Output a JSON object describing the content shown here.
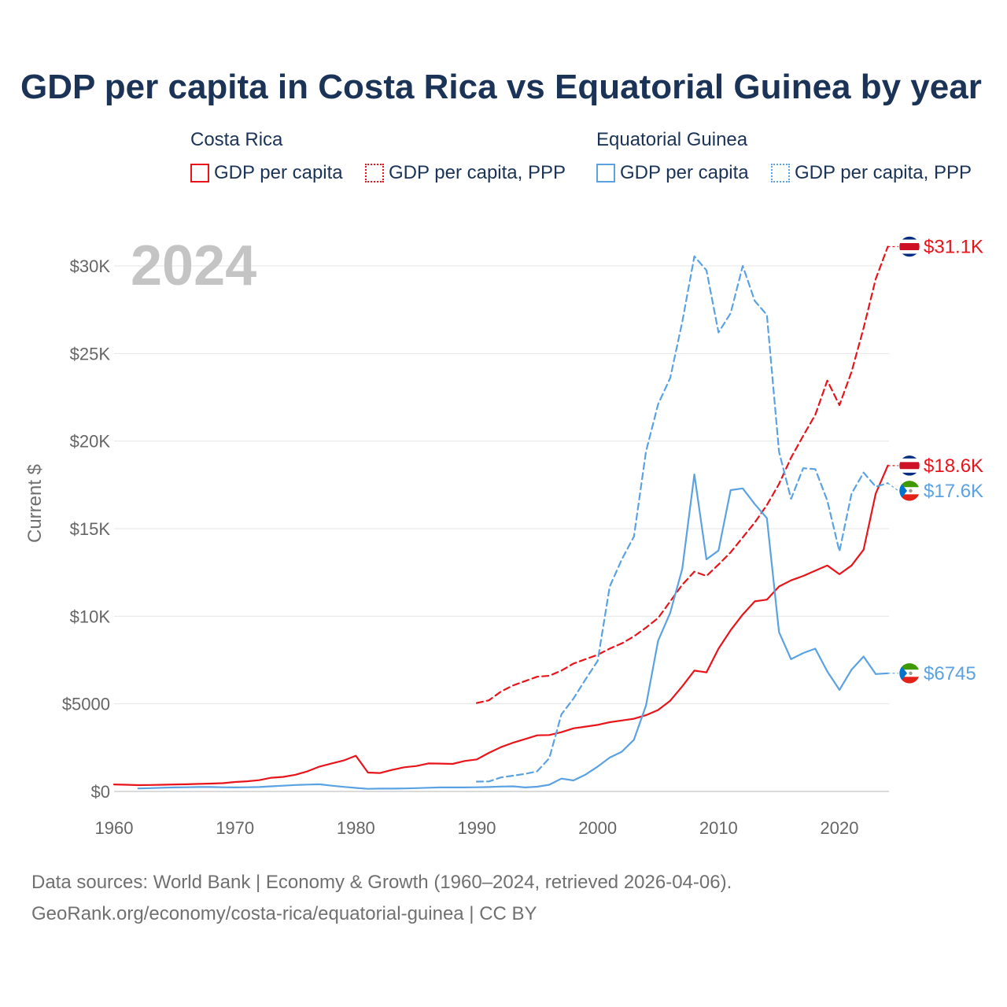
{
  "title": "GDP per capita in Costa Rica vs Equatorial Guinea by year",
  "legend": {
    "groups": [
      {
        "name": "Costa Rica",
        "color": "#e8141b",
        "items": [
          {
            "label": "GDP per capita",
            "style": "solid"
          },
          {
            "label": "GDP per capita, PPP",
            "style": "dotted"
          }
        ]
      },
      {
        "name": "Equatorial Guinea",
        "color": "#5aa2e2",
        "items": [
          {
            "label": "GDP per capita",
            "style": "solid"
          },
          {
            "label": "GDP per capita, PPP",
            "style": "dotted"
          }
        ]
      }
    ]
  },
  "year_label": "2024",
  "footer": {
    "line1": "Data sources: World Bank | Economy & Growth (1960–2024, retrieved 2026-04-06).",
    "line2": "GeoRank.org/economy/costa-rica/equatorial-guinea | CC BY"
  },
  "chart_data": {
    "type": "line",
    "title": "GDP per capita in Costa Rica vs Equatorial Guinea by year",
    "xlabel": "",
    "ylabel": "Current $",
    "xlim": [
      1960,
      2024
    ],
    "ylim": [
      0,
      32000
    ],
    "xticks": [
      1960,
      1970,
      1980,
      1990,
      2000,
      2010,
      2020
    ],
    "yticks": [
      0,
      5000,
      10000,
      15000,
      20000,
      25000,
      30000
    ],
    "ytick_labels": [
      "$0",
      "$5000",
      "$10K",
      "$15K",
      "$20K",
      "$25K",
      "$30K"
    ],
    "grid": true,
    "series": [
      {
        "name": "Costa Rica GDP per capita",
        "country": "Costa Rica",
        "color": "#e8141b",
        "dash": "solid",
        "end_label": "$18.6K",
        "flag": "costa-rica",
        "x": [
          1960,
          1961,
          1962,
          1963,
          1964,
          1965,
          1966,
          1967,
          1968,
          1969,
          1970,
          1971,
          1972,
          1973,
          1974,
          1975,
          1976,
          1977,
          1978,
          1979,
          1980,
          1981,
          1982,
          1983,
          1984,
          1985,
          1986,
          1987,
          1988,
          1989,
          1990,
          1991,
          1992,
          1993,
          1994,
          1995,
          1996,
          1997,
          1998,
          1999,
          2000,
          2001,
          2002,
          2003,
          2004,
          2005,
          2006,
          2007,
          2008,
          2009,
          2010,
          2011,
          2012,
          2013,
          2014,
          2015,
          2016,
          2017,
          2018,
          2019,
          2020,
          2021,
          2022,
          2023,
          2024
        ],
        "y": [
          400,
          380,
          360,
          370,
          380,
          400,
          410,
          430,
          450,
          470,
          540,
          580,
          640,
          780,
          830,
          950,
          1150,
          1420,
          1600,
          1770,
          2040,
          1080,
          1050,
          1230,
          1380,
          1450,
          1600,
          1590,
          1570,
          1740,
          1830,
          2200,
          2530,
          2780,
          2990,
          3200,
          3220,
          3380,
          3600,
          3700,
          3800,
          3950,
          4050,
          4150,
          4350,
          4650,
          5180,
          6000,
          6900,
          6800,
          8150,
          9200,
          10100,
          10850,
          10950,
          11700,
          12050,
          12300,
          12600,
          12900,
          12400,
          12900,
          13800,
          17000,
          18600
        ]
      },
      {
        "name": "Costa Rica GDP per capita, PPP",
        "country": "Costa Rica",
        "color": "#e8141b",
        "dash": "dashed",
        "end_label": "$31.1K",
        "flag": "costa-rica",
        "x": [
          1990,
          1991,
          1992,
          1993,
          1994,
          1995,
          1996,
          1997,
          1998,
          1999,
          2000,
          2001,
          2002,
          2003,
          2004,
          2005,
          2006,
          2007,
          2008,
          2009,
          2010,
          2011,
          2012,
          2013,
          2014,
          2015,
          2016,
          2017,
          2018,
          2019,
          2020,
          2021,
          2022,
          2023,
          2024
        ],
        "y": [
          5050,
          5200,
          5700,
          6050,
          6300,
          6550,
          6600,
          6900,
          7300,
          7550,
          7800,
          8150,
          8450,
          8850,
          9350,
          9900,
          10850,
          11800,
          12550,
          12300,
          12950,
          13650,
          14500,
          15350,
          16350,
          17550,
          19050,
          20300,
          21500,
          23450,
          22050,
          23950,
          26450,
          29250,
          31100
        ]
      },
      {
        "name": "Equatorial Guinea GDP per capita",
        "country": "Equatorial Guinea",
        "color": "#5aa2e2",
        "dash": "solid",
        "end_label": "$6745",
        "flag": "equatorial-guinea",
        "x": [
          1962,
          1963,
          1964,
          1965,
          1966,
          1967,
          1968,
          1969,
          1970,
          1971,
          1972,
          1973,
          1974,
          1975,
          1976,
          1977,
          1978,
          1979,
          1980,
          1981,
          1982,
          1983,
          1984,
          1985,
          1986,
          1987,
          1988,
          1989,
          1990,
          1991,
          1992,
          1993,
          1994,
          1995,
          1996,
          1997,
          1998,
          1999,
          2000,
          2001,
          2002,
          2003,
          2004,
          2005,
          2006,
          2007,
          2008,
          2009,
          2010,
          2011,
          2012,
          2013,
          2014,
          2015,
          2016,
          2017,
          2018,
          2019,
          2020,
          2021,
          2022,
          2023,
          2024
        ],
        "y": [
          170,
          190,
          210,
          230,
          240,
          250,
          250,
          240,
          230,
          240,
          250,
          290,
          330,
          370,
          390,
          410,
          330,
          260,
          200,
          150,
          160,
          160,
          170,
          190,
          210,
          230,
          230,
          230,
          240,
          250,
          280,
          290,
          230,
          270,
          380,
          730,
          630,
          960,
          1420,
          1930,
          2270,
          2950,
          4900,
          8600,
          10200,
          12700,
          18100,
          13250,
          13750,
          17200,
          17300,
          16400,
          15600,
          9100,
          7550,
          7900,
          8150,
          6850,
          5800,
          6950,
          7700,
          6700,
          6745
        ]
      },
      {
        "name": "Equatorial Guinea GDP per capita, PPP",
        "country": "Equatorial Guinea",
        "color": "#5aa2e2",
        "dash": "dashed",
        "end_label": "$17.6K",
        "flag": "equatorial-guinea",
        "x": [
          1990,
          1991,
          1992,
          1993,
          1994,
          1995,
          1996,
          1997,
          1998,
          1999,
          2000,
          2001,
          2002,
          2003,
          2004,
          2005,
          2006,
          2007,
          2008,
          2009,
          2010,
          2011,
          2012,
          2013,
          2014,
          2015,
          2016,
          2017,
          2018,
          2019,
          2020,
          2021,
          2022,
          2023,
          2024
        ],
        "y": [
          560,
          570,
          800,
          900,
          1000,
          1150,
          1900,
          4400,
          5300,
          6400,
          7450,
          11700,
          13250,
          14550,
          19400,
          22100,
          23600,
          26800,
          30550,
          29750,
          26200,
          27300,
          30000,
          28000,
          27200,
          19400,
          16700,
          18450,
          18400,
          16600,
          13700,
          17000,
          18200,
          17400,
          17600
        ]
      }
    ]
  }
}
